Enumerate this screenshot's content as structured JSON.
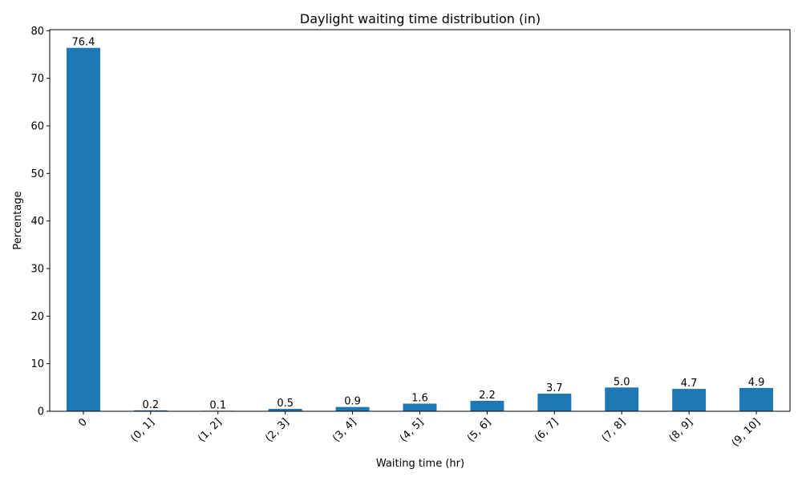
{
  "chart_data": {
    "type": "bar",
    "title": "Daylight waiting time distribution (in)",
    "xlabel": "Waiting time (hr)",
    "ylabel": "Percentage",
    "categories": [
      "0",
      "(0, 1]",
      "(1, 2]",
      "(2, 3]",
      "(3, 4]",
      "(4, 5]",
      "(5, 6]",
      "(6, 7]",
      "(7, 8]",
      "(8, 9]",
      "(9, 10]"
    ],
    "values": [
      76.4,
      0.2,
      0.1,
      0.5,
      0.9,
      1.6,
      2.2,
      3.7,
      5.0,
      4.7,
      4.9
    ],
    "data_labels": [
      "76.4",
      "0.2",
      "0.1",
      "0.5",
      "0.9",
      "1.6",
      "2.2",
      "3.7",
      "5.0",
      "4.7",
      "4.9"
    ],
    "ylim": [
      0,
      80.22
    ],
    "yticks": [
      0,
      10,
      20,
      30,
      40,
      50,
      60,
      70,
      80
    ],
    "bar_color": "#1f77b4",
    "grid": false,
    "xtick_rotation_deg": 45
  }
}
